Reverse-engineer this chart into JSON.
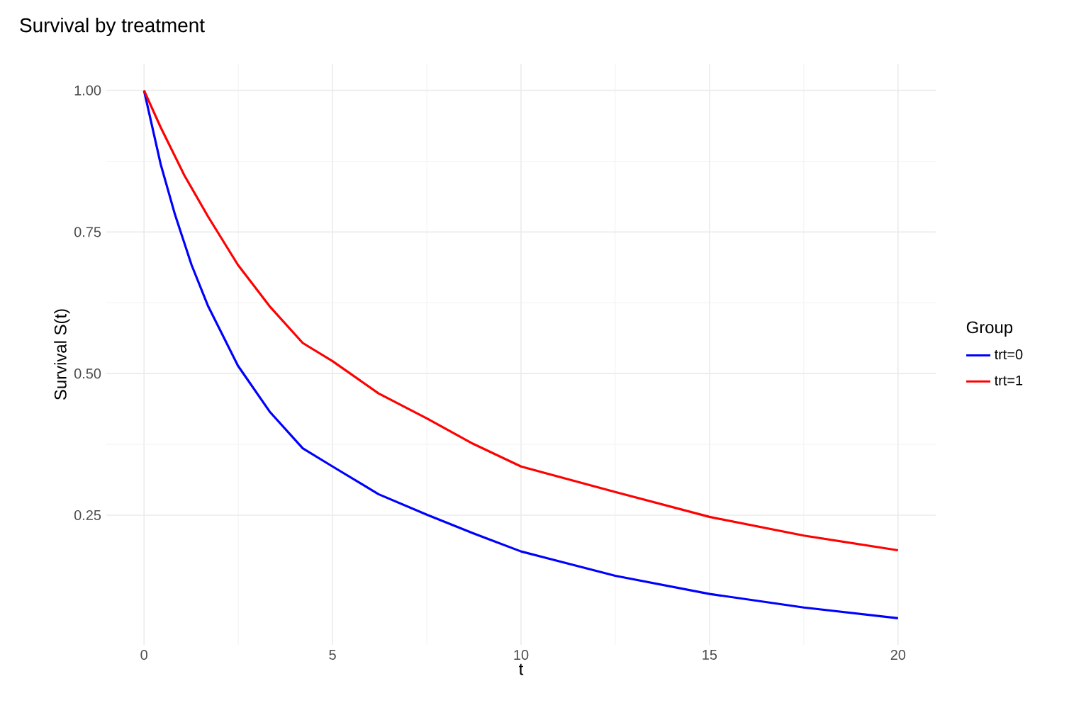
{
  "chart_data": {
    "type": "line",
    "title": "Survival by treatment",
    "xlabel": "t",
    "ylabel": "Survival S(t)",
    "legend_title": "Group",
    "xlim": [
      -1,
      21
    ],
    "ylim": [
      0.021,
      1.047
    ],
    "xticks": [
      0,
      5,
      10,
      15,
      20
    ],
    "yticks": [
      {
        "value": 0.25,
        "label": "0.25"
      },
      {
        "value": 0.5,
        "label": "0.50"
      },
      {
        "value": 0.75,
        "label": "0.75"
      },
      {
        "value": 1.0,
        "label": "1.00"
      }
    ],
    "grid": true,
    "legend": "right",
    "marker": "none",
    "line_style": "solid",
    "series": [
      {
        "name": "trt=0",
        "color": "#0000ff",
        "x": [
          0,
          0.44,
          0.82,
          1.26,
          1.7,
          2.49,
          3.33,
          4.21,
          5,
          6.22,
          7.5,
          8.73,
          10,
          12.5,
          15,
          17.5,
          20
        ],
        "values": [
          1.0,
          0.87,
          0.781,
          0.692,
          0.619,
          0.514,
          0.433,
          0.368,
          0.336,
          0.287,
          0.251,
          0.218,
          0.186,
          0.143,
          0.111,
          0.087,
          0.068
        ]
      },
      {
        "name": "trt=1",
        "color": "#ff0000",
        "x": [
          0,
          0.44,
          1.07,
          1.7,
          2.49,
          3.33,
          4.21,
          5,
          6.22,
          7.5,
          8.73,
          10,
          12.5,
          15,
          17.5,
          20
        ],
        "values": [
          1.0,
          0.935,
          0.85,
          0.777,
          0.692,
          0.619,
          0.554,
          0.522,
          0.465,
          0.421,
          0.376,
          0.336,
          0.291,
          0.247,
          0.214,
          0.188
        ]
      }
    ]
  }
}
